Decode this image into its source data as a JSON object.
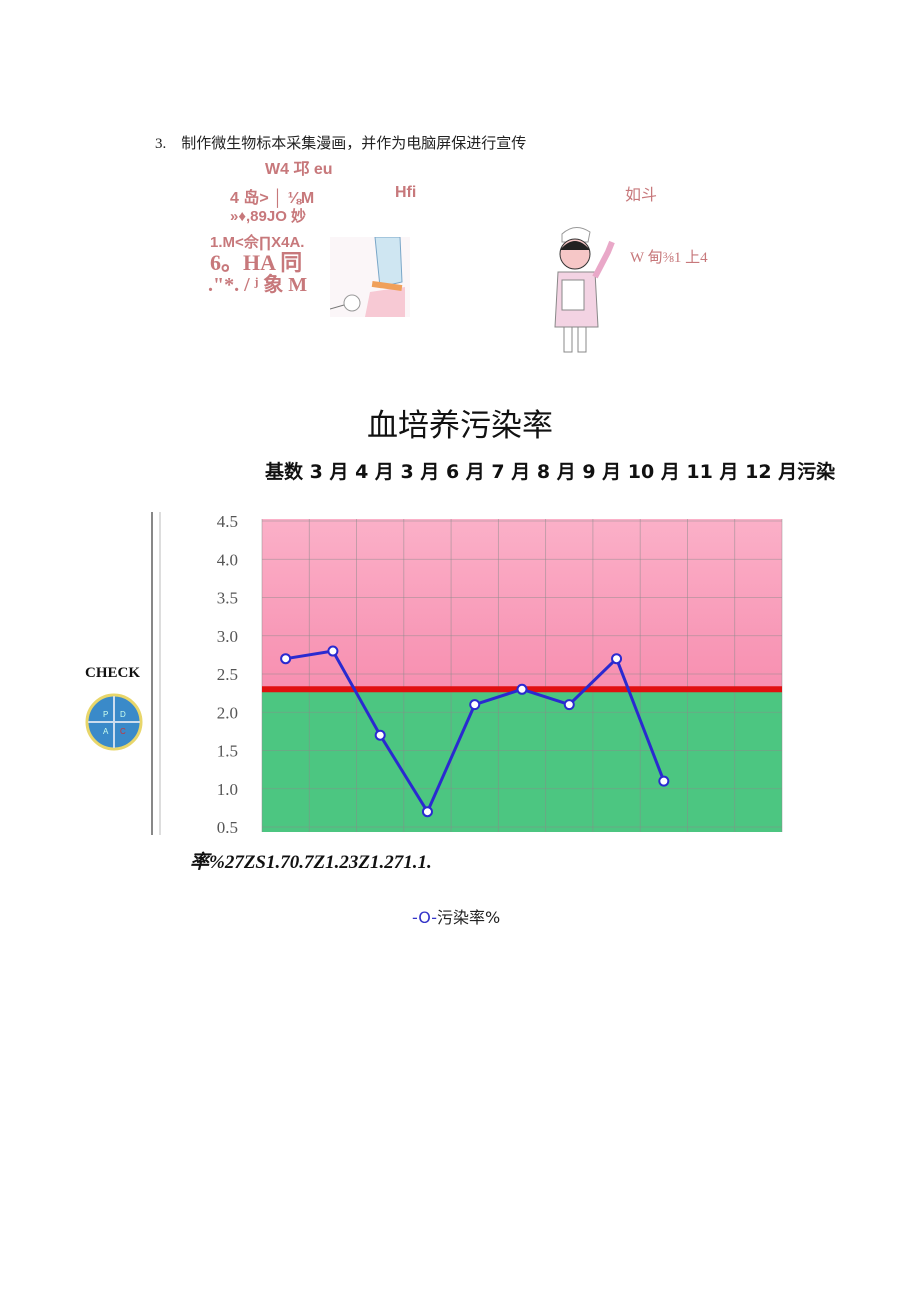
{
  "item": {
    "number": "3.",
    "text": "制作微生物标本采集漫画，并作为电脑屏保进行宣传"
  },
  "comic_text": {
    "line1": "W4 邛 eu",
    "line2": "4 岛> │ ⅛M",
    "line2b": "Hfi",
    "line2c": "如斗",
    "line3": "»♦,89JO 妙",
    "line4": "1.M<佘∏X4A.",
    "line5": "6。HA 同",
    "line6": ".\"*. / ʲ 象 M",
    "nurse_caption": "W 甸⅜1 上4"
  },
  "chart_title": "血培养污染率",
  "subtitle": "基数 3 月 4 月 3 月 6 月 7 月 8 月 9 月 10 月 11 月 12 月污染",
  "rate_line": "率%27ZS1.70.7Z1.23Z1.271.1.",
  "check_label": "CHECK",
  "pdca_logo": {
    "letters": [
      "P",
      "D",
      "A",
      "C"
    ]
  },
  "legend": {
    "marker": "-O-",
    "label": "污染率%"
  },
  "colors": {
    "upper_zone": "#f9a3bf",
    "lower_zone": "#4cc681",
    "threshold": "#e01010",
    "series": "#2a2ad0"
  },
  "chart_data": {
    "type": "line",
    "ylim": [
      0.5,
      4.5
    ],
    "yticks": [
      "4.5",
      "4.0",
      "3.5",
      "3.0",
      "2.5",
      "2.0",
      "1.5",
      "1.0",
      "0.5"
    ],
    "column_count": 11,
    "threshold": 2.3,
    "grid": true,
    "series": [
      {
        "name": "污染率%",
        "values": [
          2.7,
          2.8,
          1.7,
          0.7,
          2.1,
          2.3,
          2.1,
          2.7,
          1.1
        ]
      }
    ]
  }
}
